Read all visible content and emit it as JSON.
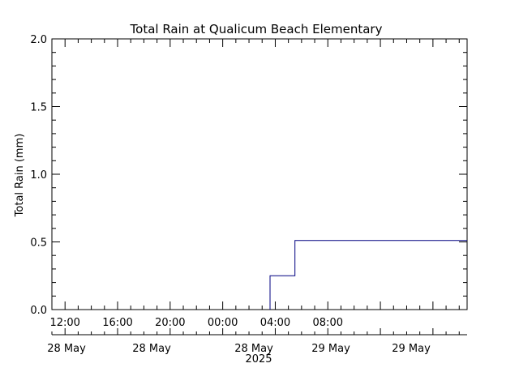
{
  "chart_data": {
    "type": "line",
    "step": true,
    "title": "Total Rain at Qualicum Beach Elementary",
    "ylabel": "Total Rain (mm)",
    "xlabel": "",
    "ylim": [
      0,
      2.0
    ],
    "y_ticks": [
      "0.0",
      "0.5",
      "1.0",
      "1.5",
      "2.0"
    ],
    "x_range_hours": [
      -1,
      30.6
    ],
    "x_ticks": [
      {
        "hour": 0,
        "time": "12:00",
        "date": "28 May"
      },
      {
        "hour": 4,
        "time": "16:00",
        "date": "28 May"
      },
      {
        "hour": 8,
        "time": "20:00",
        "date": "28 May"
      },
      {
        "hour": 12,
        "time": "00:00",
        "date": "29 May"
      },
      {
        "hour": 16,
        "time": "04:00",
        "date": "29 May"
      }
    ],
    "x_ticks_top": [
      {
        "hour": 0,
        "time": "12:00"
      },
      {
        "hour": 4,
        "time": "16:00"
      },
      {
        "hour": 8,
        "time": "20:00"
      },
      {
        "hour": 12,
        "time": "00:00"
      },
      {
        "hour": 16,
        "time": "04:00"
      },
      {
        "hour": 20,
        "time": "08:00"
      }
    ],
    "bottom_dates": [
      "28 May",
      "28 May",
      "28 May",
      "29 May",
      "29 May"
    ],
    "year_label": "2025",
    "series": [
      {
        "color": "#000080",
        "points": [
          {
            "hour": 15.6,
            "value": 0.0
          },
          {
            "hour": 15.6,
            "value": 0.25
          },
          {
            "hour": 17.5,
            "value": 0.25
          },
          {
            "hour": 17.5,
            "value": 0.51
          },
          {
            "hour": 30.6,
            "value": 0.51
          }
        ]
      }
    ]
  }
}
